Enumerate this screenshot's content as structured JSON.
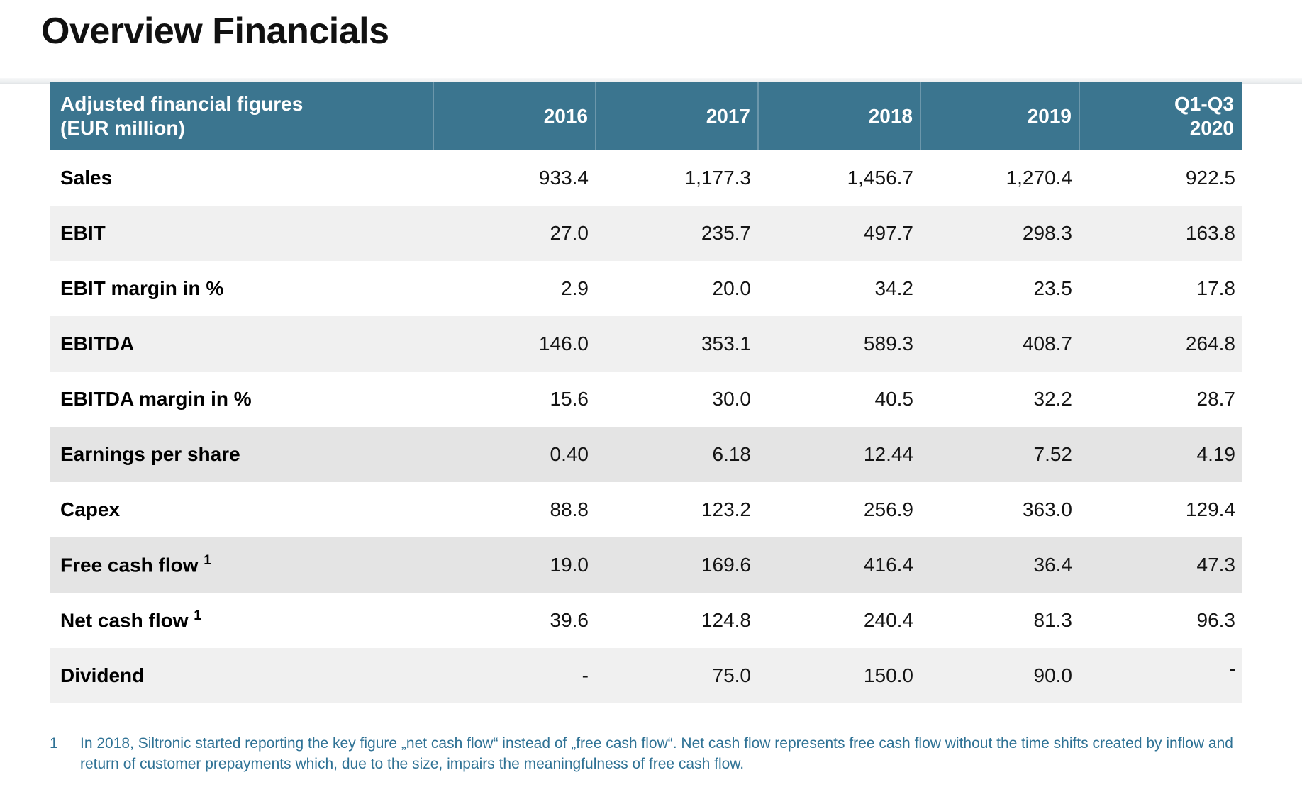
{
  "title": "Overview Financials",
  "table": {
    "header": {
      "label_line1": "Adjusted financial figures",
      "label_line2": "(EUR million)",
      "columns": [
        "2016",
        "2017",
        "2018",
        "2019"
      ],
      "last_column_line1": "Q1-Q3",
      "last_column_line2": "2020"
    },
    "rows": [
      {
        "label": "Sales",
        "sup": "",
        "shade": "none",
        "values": [
          "933.4",
          "1,177.3",
          "1,456.7",
          "1,270.4",
          "922.5"
        ]
      },
      {
        "label": "EBIT",
        "sup": "",
        "shade": "light",
        "values": [
          "27.0",
          "235.7",
          "497.7",
          "298.3",
          "163.8"
        ]
      },
      {
        "label": "EBIT margin in %",
        "sup": "",
        "shade": "none",
        "values": [
          "2.9",
          "20.0",
          "34.2",
          "23.5",
          "17.8"
        ]
      },
      {
        "label": "EBITDA",
        "sup": "",
        "shade": "light",
        "values": [
          "146.0",
          "353.1",
          "589.3",
          "408.7",
          "264.8"
        ]
      },
      {
        "label": "EBITDA margin in %",
        "sup": "",
        "shade": "none",
        "values": [
          "15.6",
          "30.0",
          "40.5",
          "32.2",
          "28.7"
        ]
      },
      {
        "label": "Earnings per share",
        "sup": "",
        "shade": "dark",
        "values": [
          "0.40",
          "6.18",
          "12.44",
          "7.52",
          "4.19"
        ]
      },
      {
        "label": "Capex",
        "sup": "",
        "shade": "none",
        "values": [
          "88.8",
          "123.2",
          "256.9",
          "363.0",
          "129.4"
        ]
      },
      {
        "label": "Free cash flow",
        "sup": "1",
        "shade": "dark",
        "values": [
          "19.0",
          "169.6",
          "416.4",
          "36.4",
          "47.3"
        ]
      },
      {
        "label": "Net cash flow",
        "sup": "1",
        "shade": "none",
        "values": [
          "39.6",
          "124.8",
          "240.4",
          "81.3",
          "96.3"
        ]
      },
      {
        "label": "Dividend",
        "sup": "",
        "shade": "light",
        "raised_last": true,
        "values": [
          "-",
          "75.0",
          "150.0",
          "90.0",
          "-"
        ]
      }
    ]
  },
  "footnote": {
    "marker": "1",
    "lines": [
      "In 2018, Siltronic started reporting the key figure „net cash flow“ instead of „free cash flow“. Net cash flow represents free cash flow without the time shifts created by inflow and",
      "return of customer prepayments which, due to the size, impairs the meaningfulness of free cash flow."
    ]
  },
  "colors": {
    "header_bg": "#3b758f",
    "row_light": "#f0f0f0",
    "row_dark": "#e4e4e4",
    "footnote": "#2f7295",
    "title": "#111111"
  }
}
